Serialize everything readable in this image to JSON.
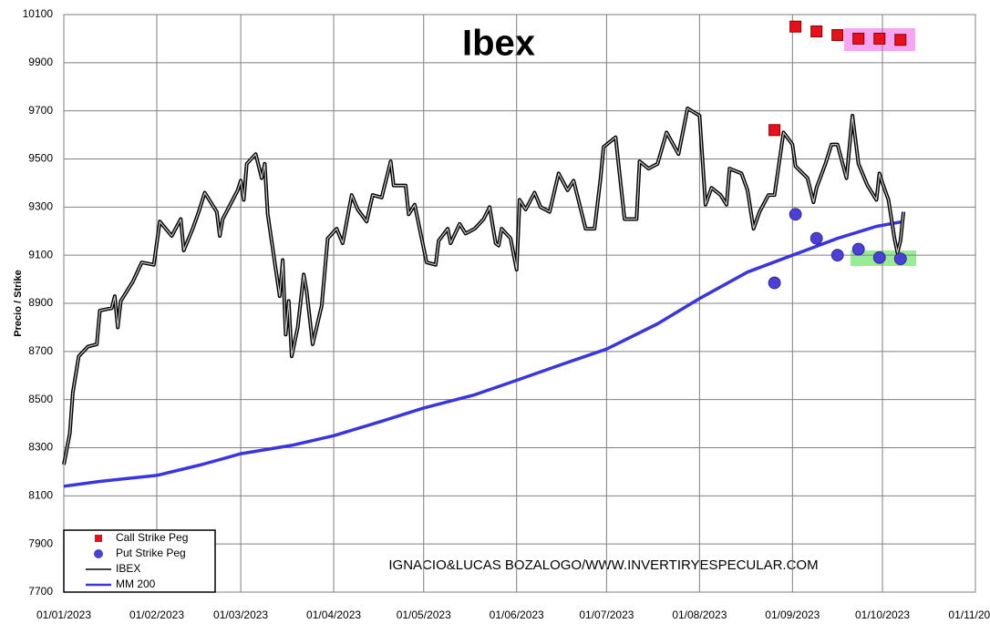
{
  "chart_data": {
    "type": "line",
    "title": "Ibex",
    "y_label": "Precio / Strike",
    "annotation": "IGNACIO&LUCAS BOZALOGO/WWW.INVERTIRYESPECULAR.COM",
    "xlim": [
      "01/01/2023",
      "01/11/2023"
    ],
    "xticks": [
      "01/01/2023",
      "01/02/2023",
      "01/03/2023",
      "01/04/2023",
      "01/05/2023",
      "01/06/2023",
      "01/07/2023",
      "01/08/2023",
      "01/09/2023",
      "01/10/2023",
      "01/11/2023"
    ],
    "ylim": [
      7700,
      10100
    ],
    "yticks": [
      7700,
      7900,
      8100,
      8300,
      8500,
      8700,
      8900,
      9100,
      9300,
      9500,
      9700,
      9900,
      10100
    ],
    "grid": true,
    "legend": "lower left",
    "series": [
      {
        "name": "Call Strike Peg",
        "color": "#e8101a",
        "marker": "square",
        "x": [
          "26/08/2023",
          "02/09/2023",
          "09/09/2023",
          "16/09/2023",
          "23/09/2023",
          "30/09/2023",
          "07/10/2023"
        ],
        "values": [
          9620,
          10050,
          10030,
          10015,
          10000,
          10000,
          9995
        ]
      },
      {
        "name": "Put Strike Peg",
        "color": "#4a3fd6",
        "marker": "circle",
        "x": [
          "26/08/2023",
          "02/09/2023",
          "09/09/2023",
          "16/09/2023",
          "23/09/2023",
          "30/09/2023",
          "07/10/2023"
        ],
        "values": [
          8985,
          9270,
          9170,
          9100,
          9125,
          9090,
          9085
        ]
      },
      {
        "name": "IBEX",
        "color": "#000000",
        "marker": "line",
        "x": [
          "01/01/2023",
          "03/01/2023",
          "04/01/2023",
          "06/01/2023",
          "09/01/2023",
          "12/01/2023",
          "13/01/2023",
          "17/01/2023",
          "18/01/2023",
          "19/01/2023",
          "20/01/2023",
          "24/01/2023",
          "27/01/2023",
          "31/01/2023",
          "02/02/2023",
          "06/02/2023",
          "09/02/2023",
          "10/02/2023",
          "13/02/2023",
          "15/02/2023",
          "17/02/2023",
          "21/02/2023",
          "22/02/2023",
          "23/02/2023",
          "28/02/2023",
          "01/03/2023",
          "02/03/2023",
          "03/03/2023",
          "06/03/2023",
          "08/03/2023",
          "09/03/2023",
          "10/03/2023",
          "14/03/2023",
          "15/03/2023",
          "16/03/2023",
          "17/03/2023",
          "18/03/2023",
          "20/03/2023",
          "22/03/2023",
          "23/03/2023",
          "25/03/2023",
          "28/03/2023",
          "30/03/2023",
          "02/04/2023",
          "04/04/2023",
          "07/04/2023",
          "09/04/2023",
          "12/04/2023",
          "14/04/2023",
          "17/04/2023",
          "20/04/2023",
          "21/04/2023",
          "25/04/2023",
          "26/04/2023",
          "28/04/2023",
          "02/05/2023",
          "05/05/2023",
          "06/05/2023",
          "09/05/2023",
          "10/05/2023",
          "13/05/2023",
          "15/05/2023",
          "18/05/2023",
          "21/05/2023",
          "23/05/2023",
          "25/05/2023",
          "26/05/2023",
          "27/05/2023",
          "30/05/2023",
          "01/06/2023",
          "02/06/2023",
          "04/06/2023",
          "07/06/2023",
          "09/06/2023",
          "12/06/2023",
          "15/06/2023",
          "18/06/2023",
          "20/06/2023",
          "24/06/2023",
          "27/06/2023",
          "29/06/2023",
          "30/06/2023",
          "04/07/2023",
          "07/07/2023",
          "11/07/2023",
          "12/07/2023",
          "15/07/2023",
          "18/07/2023",
          "21/07/2023",
          "25/07/2023",
          "28/07/2023",
          "01/08/2023",
          "03/08/2023",
          "05/08/2023",
          "08/08/2023",
          "10/08/2023",
          "11/08/2023",
          "15/08/2023",
          "17/08/2023",
          "19/08/2023",
          "21/08/2023",
          "24/08/2023",
          "26/08/2023",
          "29/08/2023",
          "01/09/2023",
          "02/09/2023",
          "06/09/2023",
          "08/09/2023",
          "09/09/2023",
          "12/09/2023",
          "14/09/2023",
          "16/09/2023",
          "19/09/2023",
          "21/09/2023",
          "23/09/2023",
          "26/09/2023",
          "29/09/2023",
          "30/09/2023",
          "01/10/2023",
          "03/10/2023",
          "05/10/2023",
          "06/10/2023",
          "07/10/2023",
          "08/10/2023"
        ],
        "values": [
          8230,
          8360,
          8530,
          8680,
          8720,
          8730,
          8870,
          8880,
          8930,
          8800,
          8910,
          8990,
          9070,
          9060,
          9240,
          9180,
          9250,
          9120,
          9210,
          9280,
          9360,
          9280,
          9180,
          9250,
          9370,
          9410,
          9330,
          9480,
          9520,
          9420,
          9480,
          9270,
          8930,
          9080,
          8770,
          8910,
          8680,
          8800,
          9020,
          8950,
          8730,
          8890,
          9170,
          9210,
          9150,
          9350,
          9290,
          9240,
          9350,
          9340,
          9490,
          9390,
          9390,
          9270,
          9310,
          9070,
          9060,
          9160,
          9210,
          9150,
          9230,
          9190,
          9210,
          9250,
          9300,
          9150,
          9140,
          9210,
          9170,
          9040,
          9330,
          9290,
          9360,
          9300,
          9280,
          9440,
          9370,
          9410,
          9210,
          9210,
          9420,
          9550,
          9590,
          9250,
          9250,
          9490,
          9460,
          9480,
          9610,
          9520,
          9710,
          9680,
          9310,
          9380,
          9350,
          9310,
          9460,
          9440,
          9370,
          9210,
          9280,
          9350,
          9350,
          9610,
          9560,
          9470,
          9420,
          9320,
          9380,
          9480,
          9560,
          9560,
          9420,
          9680,
          9480,
          9390,
          9330,
          9440,
          9400,
          9330,
          9170,
          9110,
          9160,
          9280
        ]
      },
      {
        "name": "MM 200",
        "color": "#3b35dd",
        "marker": "thickline",
        "x": [
          "01/01/2023",
          "13/01/2023",
          "01/02/2023",
          "16/02/2023",
          "01/03/2023",
          "18/03/2023",
          "01/04/2023",
          "17/04/2023",
          "01/05/2023",
          "18/05/2023",
          "01/06/2023",
          "17/06/2023",
          "01/07/2023",
          "18/07/2023",
          "01/08/2023",
          "17/08/2023",
          "01/09/2023",
          "16/09/2023",
          "29/09/2023",
          "08/10/2023"
        ],
        "values": [
          8140,
          8160,
          8185,
          8230,
          8275,
          8310,
          8350,
          8410,
          8465,
          8520,
          8580,
          8650,
          8710,
          8815,
          8920,
          9030,
          9100,
          9170,
          9220,
          9240
        ]
      }
    ]
  }
}
